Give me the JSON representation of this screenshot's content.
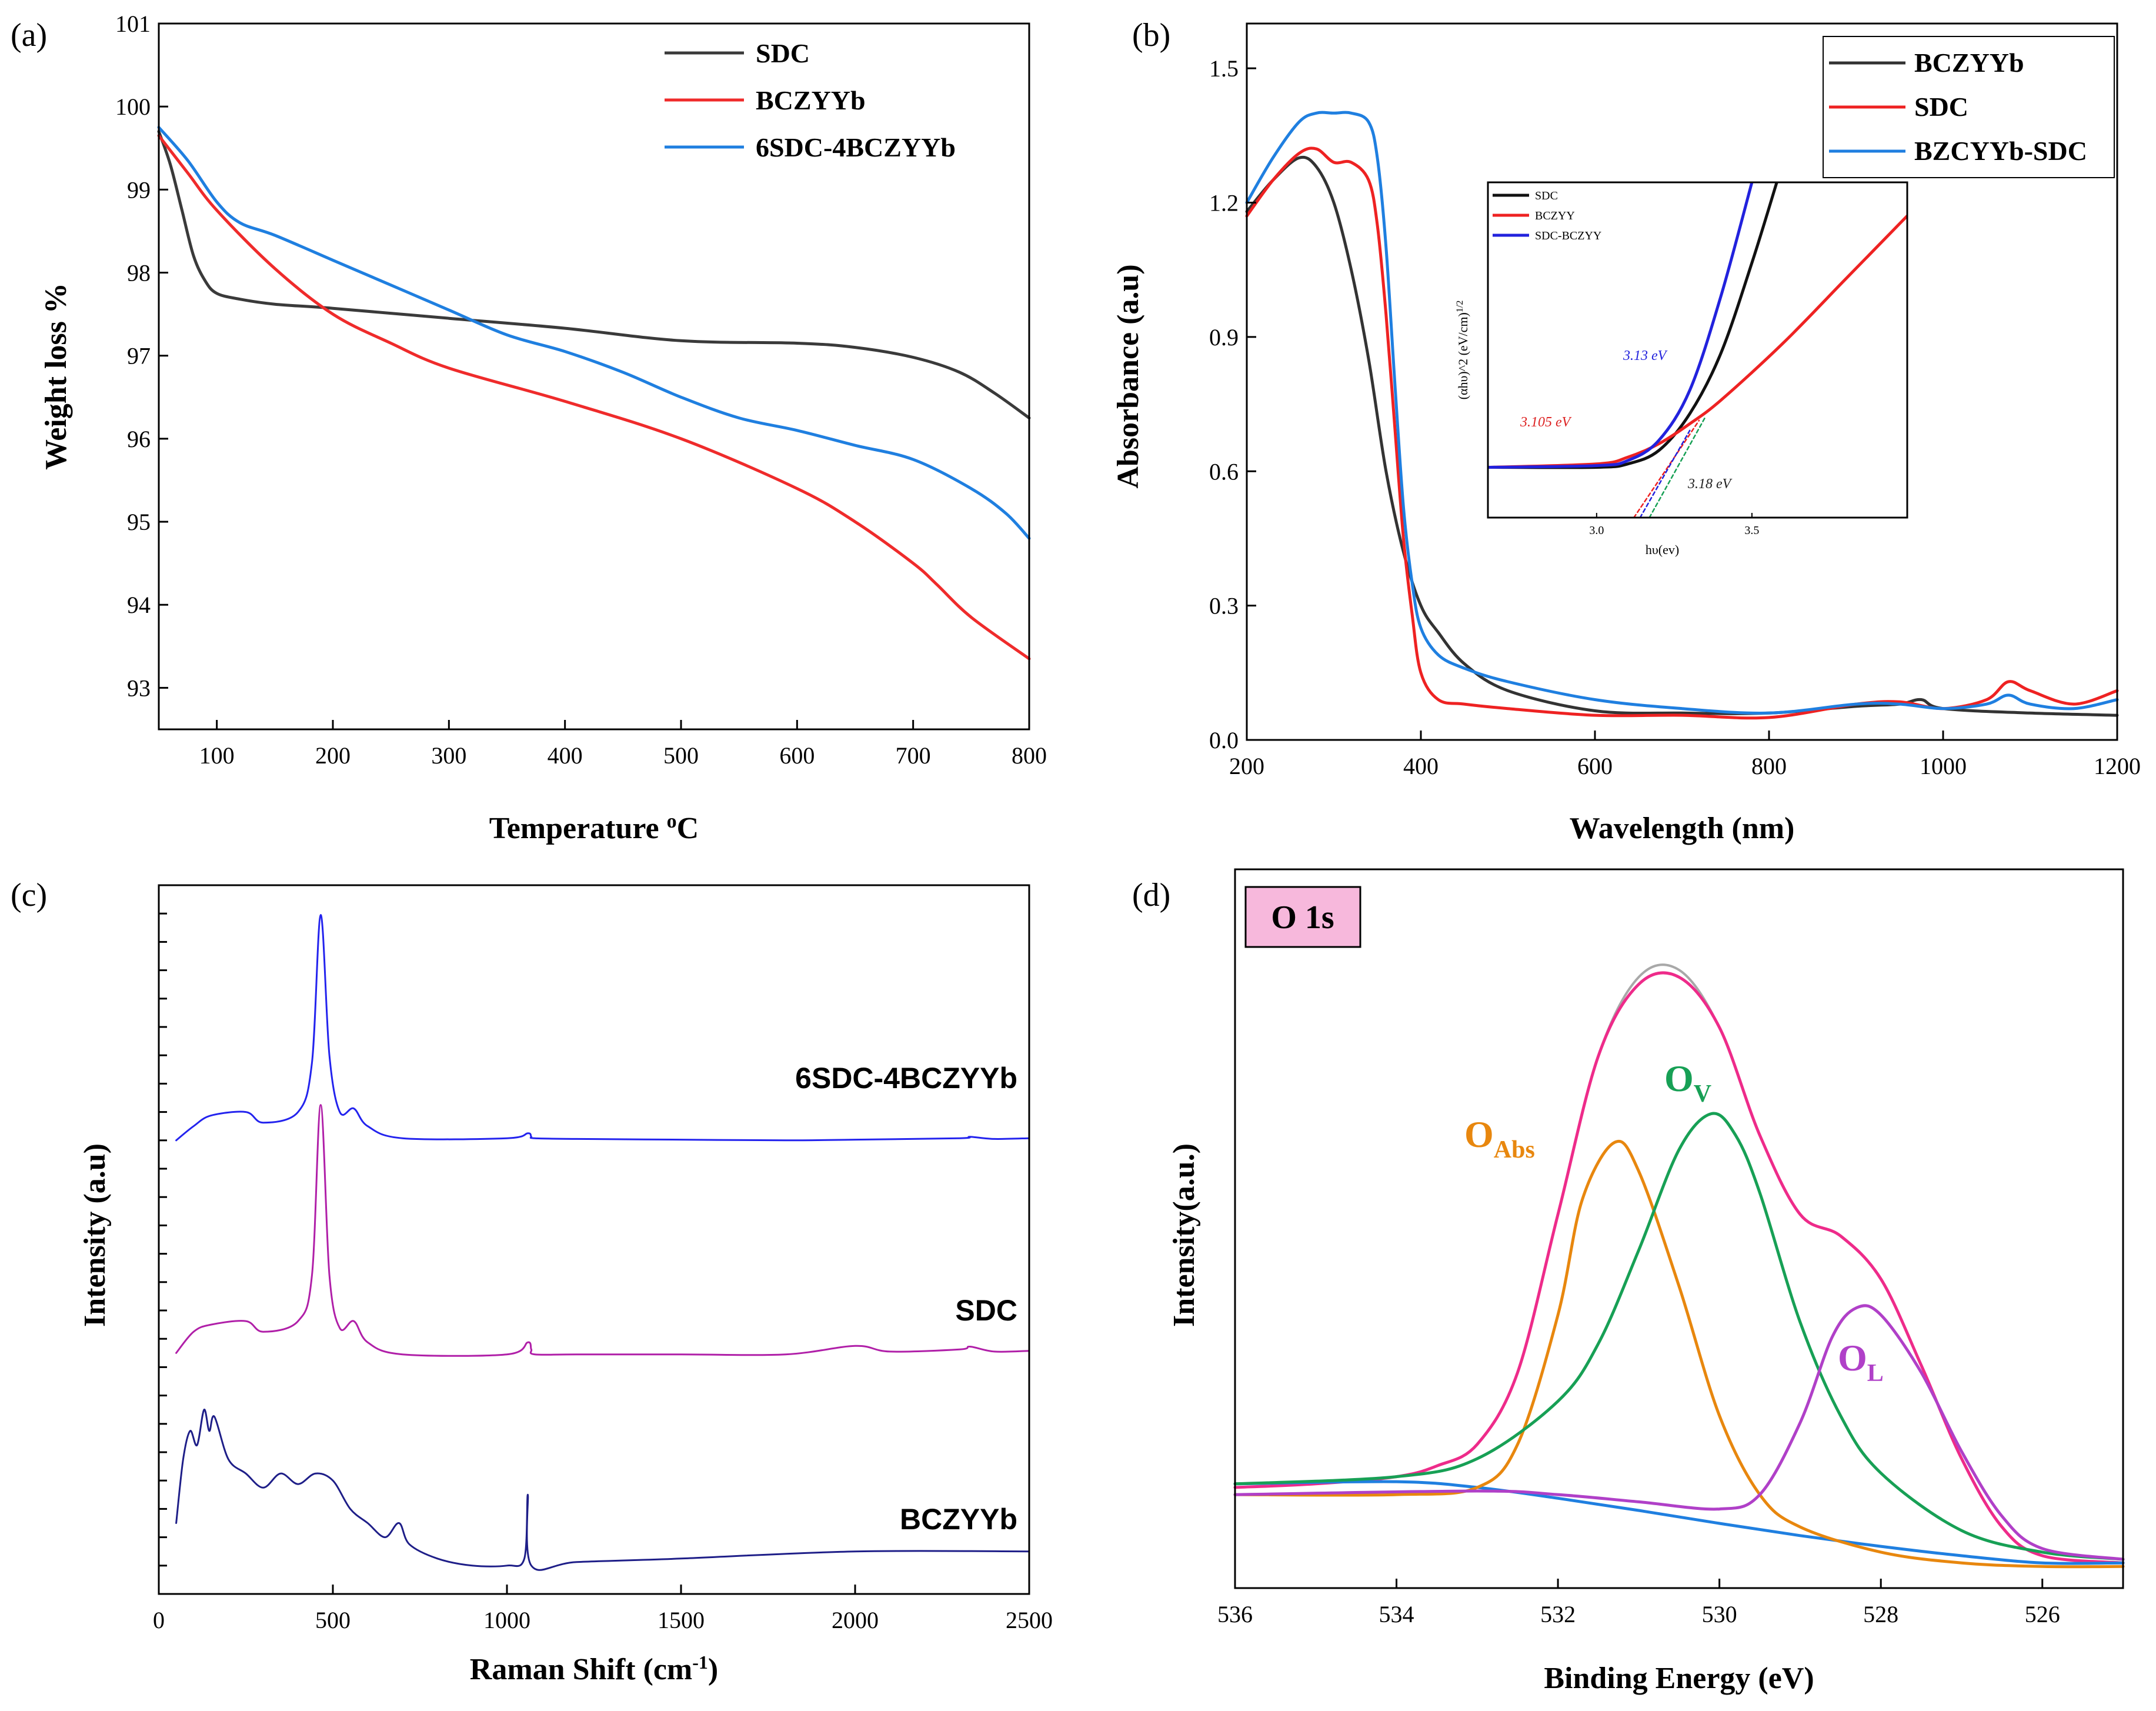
{
  "chart_data": [
    {
      "panel": "(a)",
      "type": "line",
      "xlabel": "Temperature ",
      "xlabel_unit": "oC",
      "ylabel": "Weight loss %",
      "xlim": [
        50,
        800
      ],
      "ylim": [
        92.5,
        101
      ],
      "xticks": [
        100,
        200,
        300,
        400,
        500,
        600,
        700,
        800
      ],
      "yticks": [
        93,
        94,
        95,
        96,
        97,
        98,
        99,
        100,
        101
      ],
      "legend_position": "top-right",
      "series": [
        {
          "name": "SDC",
          "color": "#3a3a3a",
          "x": [
            50,
            60,
            70,
            80,
            90,
            100,
            120,
            150,
            200,
            300,
            400,
            500,
            600,
            650,
            700,
            740,
            770,
            800
          ],
          "y": [
            99.7,
            99.3,
            98.75,
            98.2,
            97.9,
            97.75,
            97.68,
            97.62,
            97.57,
            97.45,
            97.33,
            97.18,
            97.15,
            97.1,
            96.98,
            96.8,
            96.55,
            96.25
          ]
        },
        {
          "name": "BCZYYb",
          "color": "#ef2b2b",
          "x": [
            50,
            75,
            100,
            150,
            200,
            250,
            300,
            400,
            500,
            600,
            650,
            700,
            720,
            750,
            800
          ],
          "y": [
            99.65,
            99.2,
            98.75,
            98.05,
            97.5,
            97.15,
            96.85,
            96.45,
            96.0,
            95.4,
            95.0,
            94.5,
            94.25,
            93.85,
            93.35
          ]
        },
        {
          "name": "6SDC-4BCZYYb",
          "color": "#1f7fe0",
          "x": [
            50,
            75,
            100,
            120,
            150,
            200,
            250,
            300,
            350,
            400,
            450,
            500,
            550,
            600,
            650,
            700,
            750,
            780,
            800
          ],
          "y": [
            99.75,
            99.35,
            98.85,
            98.6,
            98.45,
            98.15,
            97.85,
            97.55,
            97.25,
            97.05,
            96.8,
            96.5,
            96.25,
            96.1,
            95.92,
            95.75,
            95.4,
            95.1,
            94.8
          ]
        }
      ]
    },
    {
      "panel": "(b)",
      "type": "line",
      "xlabel": "Wavelength (nm)",
      "ylabel": "Absorbance (a.u)",
      "xlim": [
        200,
        1200
      ],
      "ylim": [
        0.0,
        1.6
      ],
      "xticks": [
        200,
        400,
        600,
        800,
        1000,
        1200
      ],
      "yticks": [
        0.0,
        0.3,
        0.6,
        0.9,
        1.2,
        1.5
      ],
      "yticklabels": [
        "0.0",
        "0.3",
        "0.6",
        "0.9",
        "1.2",
        "1.5"
      ],
      "legend_position": "top-right",
      "series": [
        {
          "name": "BCZYYb",
          "color": "#333333",
          "x": [
            200,
            230,
            260,
            280,
            300,
            320,
            340,
            360,
            380,
            400,
            420,
            450,
            500,
            600,
            700,
            800,
            900,
            950,
            975,
            1000,
            1100,
            1200
          ],
          "y": [
            1.18,
            1.25,
            1.3,
            1.28,
            1.2,
            1.05,
            0.85,
            0.6,
            0.42,
            0.3,
            0.24,
            0.17,
            0.11,
            0.065,
            0.06,
            0.06,
            0.075,
            0.08,
            0.09,
            0.07,
            0.06,
            0.055
          ]
        },
        {
          "name": "SDC",
          "color": "#ee2222",
          "x": [
            200,
            230,
            260,
            280,
            300,
            320,
            340,
            350,
            360,
            370,
            380,
            390,
            400,
            420,
            450,
            500,
            600,
            700,
            800,
            900,
            950,
            1000,
            1050,
            1075,
            1100,
            1150,
            1200
          ],
          "y": [
            1.17,
            1.25,
            1.31,
            1.32,
            1.29,
            1.29,
            1.25,
            1.15,
            0.95,
            0.7,
            0.45,
            0.28,
            0.15,
            0.09,
            0.08,
            0.07,
            0.055,
            0.055,
            0.05,
            0.08,
            0.085,
            0.07,
            0.09,
            0.13,
            0.11,
            0.08,
            0.11
          ]
        },
        {
          "name": "BZCYYb-SDC",
          "color": "#1f7fe0",
          "x": [
            200,
            230,
            260,
            280,
            300,
            320,
            340,
            350,
            360,
            370,
            380,
            390,
            400,
            420,
            450,
            500,
            600,
            700,
            800,
            900,
            950,
            1000,
            1050,
            1075,
            1100,
            1150,
            1200
          ],
          "y": [
            1.2,
            1.3,
            1.38,
            1.4,
            1.4,
            1.4,
            1.38,
            1.3,
            1.1,
            0.8,
            0.52,
            0.35,
            0.25,
            0.19,
            0.16,
            0.13,
            0.09,
            0.07,
            0.06,
            0.08,
            0.08,
            0.07,
            0.08,
            0.1,
            0.08,
            0.07,
            0.09
          ]
        }
      ],
      "inset": {
        "type": "line",
        "xlabel": "hυ(ev)",
        "ylabel": "(αhυ)^2 (eV/cm)",
        "ylabel_sup": "1/2",
        "xlim": [
          2.65,
          4.0
        ],
        "ylim": [
          0,
          10
        ],
        "xticks": [
          3.0,
          3.5
        ],
        "xticklabels": [
          "3.0",
          "3.5"
        ],
        "legend": [
          "SDC",
          "BCZYY",
          "SDC-BCZYY"
        ],
        "annotations": [
          {
            "text": "3.13 eV",
            "color": "#2222dd"
          },
          {
            "text": "3.105 eV",
            "color": "#dd2222"
          },
          {
            "text": "3.18 eV",
            "color": "#222222"
          }
        ],
        "series": [
          {
            "name": "SDC",
            "color": "#111111",
            "x": [
              2.65,
              3.0,
              3.1,
              3.2,
              3.3,
              3.4,
              3.5,
              3.58
            ],
            "y": [
              1.5,
              1.5,
              1.6,
              2.0,
              3.1,
              4.9,
              7.6,
              10.0
            ]
          },
          {
            "name": "BCZYY",
            "color": "#ee2222",
            "x": [
              2.65,
              3.0,
              3.1,
              3.2,
              3.3,
              3.4,
              3.6,
              3.8,
              4.0
            ],
            "y": [
              1.5,
              1.6,
              1.8,
              2.2,
              2.8,
              3.5,
              5.2,
              7.1,
              9.0
            ]
          },
          {
            "name": "SDC-BCZYY",
            "color": "#2222dd",
            "x": [
              2.65,
              3.0,
              3.1,
              3.2,
              3.3,
              3.4,
              3.5
            ],
            "y": [
              1.5,
              1.55,
              1.7,
              2.3,
              3.8,
              6.6,
              10.0
            ]
          }
        ]
      }
    },
    {
      "panel": "(c)",
      "type": "line",
      "xlabel": "Raman Shift (cm",
      "xlabel_sup": "-1",
      "xlabel_end": ")",
      "ylabel": "Intensity (a.u)",
      "xlim": [
        0,
        2500
      ],
      "ylim": [
        0,
        1
      ],
      "xticks": [
        0,
        500,
        1000,
        1500,
        2000,
        2500
      ],
      "yticks_unlabeled": 24,
      "series": [
        {
          "name": "6SDC-4BCZYYb",
          "color": "#2323ee",
          "x": [
            50,
            100,
            150,
            250,
            300,
            400,
            440,
            465,
            490,
            520,
            560,
            600,
            700,
            1000,
            1060,
            1070,
            1080,
            1200,
            1500,
            1800,
            2000,
            2300,
            2330,
            2400,
            2500
          ],
          "y": [
            0.64,
            0.66,
            0.675,
            0.68,
            0.665,
            0.68,
            0.75,
            0.958,
            0.76,
            0.68,
            0.685,
            0.66,
            0.643,
            0.643,
            0.65,
            0.645,
            0.643,
            0.642,
            0.641,
            0.64,
            0.641,
            0.643,
            0.645,
            0.642,
            0.643
          ]
        },
        {
          "name": "SDC",
          "color": "#b01fa8",
          "x": [
            50,
            100,
            150,
            250,
            300,
            400,
            440,
            465,
            490,
            520,
            560,
            600,
            700,
            1000,
            1060,
            1070,
            1080,
            1200,
            1500,
            1800,
            2000,
            2100,
            2300,
            2330,
            2400,
            2500
          ],
          "y": [
            0.34,
            0.37,
            0.38,
            0.385,
            0.37,
            0.385,
            0.45,
            0.69,
            0.45,
            0.375,
            0.385,
            0.355,
            0.338,
            0.338,
            0.355,
            0.345,
            0.338,
            0.338,
            0.338,
            0.338,
            0.35,
            0.342,
            0.345,
            0.349,
            0.342,
            0.343
          ]
        },
        {
          "name": "BCZYYb",
          "color": "#1e1e88",
          "x": [
            50,
            70,
            90,
            110,
            130,
            145,
            160,
            200,
            250,
            300,
            350,
            400,
            450,
            500,
            550,
            600,
            650,
            690,
            720,
            800,
            900,
            1000,
            1050,
            1060,
            1070,
            1200,
            1500,
            2000,
            2500
          ],
          "y": [
            0.1,
            0.19,
            0.23,
            0.21,
            0.26,
            0.23,
            0.25,
            0.19,
            0.17,
            0.15,
            0.17,
            0.155,
            0.17,
            0.16,
            0.12,
            0.1,
            0.08,
            0.1,
            0.07,
            0.05,
            0.04,
            0.04,
            0.05,
            0.14,
            0.04,
            0.045,
            0.05,
            0.06,
            0.06
          ]
        }
      ],
      "curve_labels": [
        "6SDC-4BCZYYb",
        "SDC",
        "BCZYYb"
      ]
    },
    {
      "panel": "(d)",
      "type": "line",
      "xlabel": "Binding Energy (eV)",
      "ylabel": "Intensity(a.u.)",
      "xlim": [
        536,
        525
      ],
      "ylim": [
        0,
        1
      ],
      "xticks": [
        536,
        534,
        532,
        530,
        528,
        526
      ],
      "badge": "O 1s",
      "peak_labels": [
        {
          "main": "O",
          "sub": "Abs",
          "color": "#e8870e"
        },
        {
          "main": "O",
          "sub": "V",
          "color": "#17a055"
        },
        {
          "main": "O",
          "sub": "L",
          "color": "#b040c8"
        }
      ],
      "series": [
        {
          "name": "Raw",
          "color": "#a8a8a8",
          "x": [
            536,
            535,
            534,
            533.5,
            533,
            532.5,
            532,
            531.5,
            531,
            530.5,
            530,
            529.5,
            529,
            528.5,
            528,
            527.5,
            527,
            526.5,
            526,
            525
          ],
          "y": [
            0.14,
            0.145,
            0.155,
            0.17,
            0.2,
            0.3,
            0.52,
            0.74,
            0.85,
            0.86,
            0.78,
            0.63,
            0.52,
            0.49,
            0.43,
            0.31,
            0.18,
            0.085,
            0.045,
            0.035
          ]
        },
        {
          "name": "Envelope",
          "color": "#ee2b8a",
          "x": [
            536,
            535,
            534,
            533.5,
            533,
            532.5,
            532,
            531.5,
            531,
            530.5,
            530,
            529.5,
            529,
            528.5,
            528,
            527.5,
            527,
            526.5,
            526,
            525
          ],
          "y": [
            0.14,
            0.145,
            0.155,
            0.17,
            0.2,
            0.3,
            0.52,
            0.74,
            0.84,
            0.85,
            0.78,
            0.63,
            0.52,
            0.49,
            0.43,
            0.31,
            0.18,
            0.085,
            0.045,
            0.035
          ]
        },
        {
          "name": "Background",
          "color": "#1f7fe0",
          "x": [
            536,
            534,
            533,
            532,
            531,
            530,
            529,
            528,
            527,
            526,
            525
          ],
          "y": [
            0.145,
            0.148,
            0.14,
            0.125,
            0.108,
            0.09,
            0.073,
            0.058,
            0.045,
            0.035,
            0.035
          ]
        },
        {
          "name": "O_Abs",
          "color": "#e8870e",
          "x": [
            536,
            534,
            533,
            532.5,
            532,
            531.7,
            531.3,
            531,
            530.5,
            530,
            529.5,
            529,
            528,
            527,
            526,
            525
          ],
          "y": [
            0.13,
            0.13,
            0.14,
            0.2,
            0.38,
            0.54,
            0.62,
            0.58,
            0.42,
            0.24,
            0.13,
            0.085,
            0.05,
            0.035,
            0.03,
            0.03
          ]
        },
        {
          "name": "O_V",
          "color": "#17a055",
          "x": [
            536,
            534,
            533,
            532,
            531.5,
            531,
            530.5,
            530.1,
            529.8,
            529.5,
            529,
            528.5,
            528,
            527,
            526,
            525
          ],
          "y": [
            0.145,
            0.155,
            0.18,
            0.26,
            0.34,
            0.47,
            0.61,
            0.66,
            0.63,
            0.55,
            0.37,
            0.24,
            0.16,
            0.08,
            0.05,
            0.04
          ]
        },
        {
          "name": "O_L",
          "color": "#b040c8",
          "x": [
            536,
            533,
            532,
            531,
            530,
            529.5,
            529,
            528.6,
            528.3,
            528,
            527.5,
            527,
            526.5,
            526,
            525
          ],
          "y": [
            0.13,
            0.135,
            0.13,
            0.12,
            0.11,
            0.13,
            0.23,
            0.35,
            0.39,
            0.38,
            0.3,
            0.19,
            0.1,
            0.055,
            0.04
          ]
        }
      ]
    }
  ]
}
